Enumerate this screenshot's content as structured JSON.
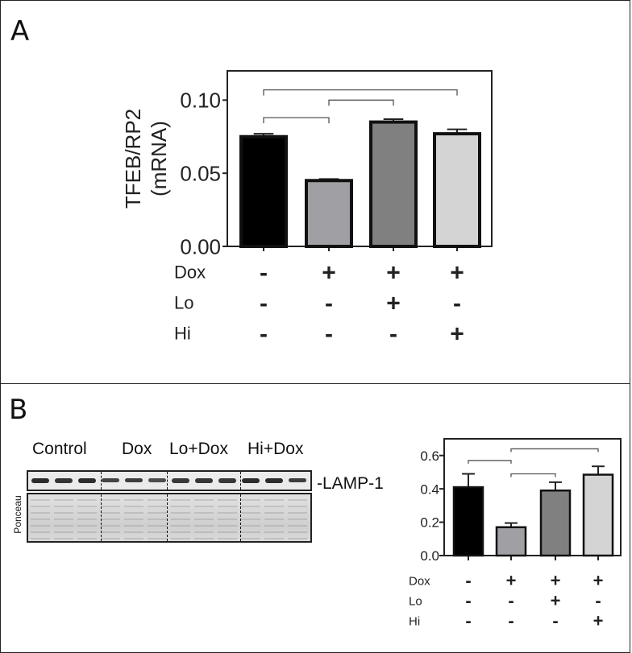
{
  "panels": {
    "a_label": "A",
    "b_label": "B"
  },
  "blot": {
    "groups": [
      "Control",
      "Dox",
      "Lo+Dox",
      "Hi+Dox"
    ],
    "band_label": "-LAMP-1",
    "loading_label": "Ponceau"
  },
  "chart_data": [
    {
      "type": "bar",
      "panel": "A",
      "ylabel_lines": [
        "TFEB/RP2",
        "(mRNA)"
      ],
      "ylim": [
        0,
        0.12
      ],
      "yticks": [
        "0.00",
        "0.05",
        "0.10"
      ],
      "ytick_values": [
        0,
        0.05,
        0.1
      ],
      "values": [
        0.075,
        0.045,
        0.085,
        0.077
      ],
      "errors": [
        0.002,
        0.001,
        0.002,
        0.003
      ],
      "colors": [
        "#000000",
        "#a0a0a4",
        "#808080",
        "#d4d4d4"
      ],
      "significance_brackets": [
        {
          "from": 1,
          "to": 2,
          "level": 0.088
        },
        {
          "from": 2,
          "to": 3,
          "level": 0.1
        },
        {
          "from": 1,
          "to": 4,
          "level": 0.107
        }
      ],
      "condition_rows": [
        {
          "label": "Dox",
          "values": [
            "-",
            "+",
            "+",
            "+"
          ]
        },
        {
          "label": "Lo",
          "values": [
            "-",
            "-",
            "+",
            "-"
          ]
        },
        {
          "label": "Hi",
          "values": [
            "-",
            "-",
            "-",
            "+"
          ]
        }
      ],
      "grid": false
    },
    {
      "type": "bar",
      "panel": "B",
      "ylim": [
        0,
        0.7
      ],
      "yticks": [
        "0.0",
        "0.2",
        "0.4",
        "0.6"
      ],
      "ytick_values": [
        0,
        0.2,
        0.4,
        0.6
      ],
      "values": [
        0.41,
        0.17,
        0.39,
        0.485
      ],
      "errors": [
        0.08,
        0.025,
        0.05,
        0.05
      ],
      "colors": [
        "#000000",
        "#a0a0a4",
        "#808080",
        "#d4d4d4"
      ],
      "significance_brackets": [
        {
          "from": 1,
          "to": 2,
          "level": 0.57
        },
        {
          "from": 2,
          "to": 3,
          "level": 0.49
        },
        {
          "from": 2,
          "to": 4,
          "level": 0.64
        }
      ],
      "condition_rows": [
        {
          "label": "Dox",
          "values": [
            "-",
            "+",
            "+",
            "+"
          ]
        },
        {
          "label": "Lo",
          "values": [
            "-",
            "-",
            "+",
            "-"
          ]
        },
        {
          "label": "Hi",
          "values": [
            "-",
            "-",
            "-",
            "+"
          ]
        }
      ],
      "grid": false
    }
  ]
}
